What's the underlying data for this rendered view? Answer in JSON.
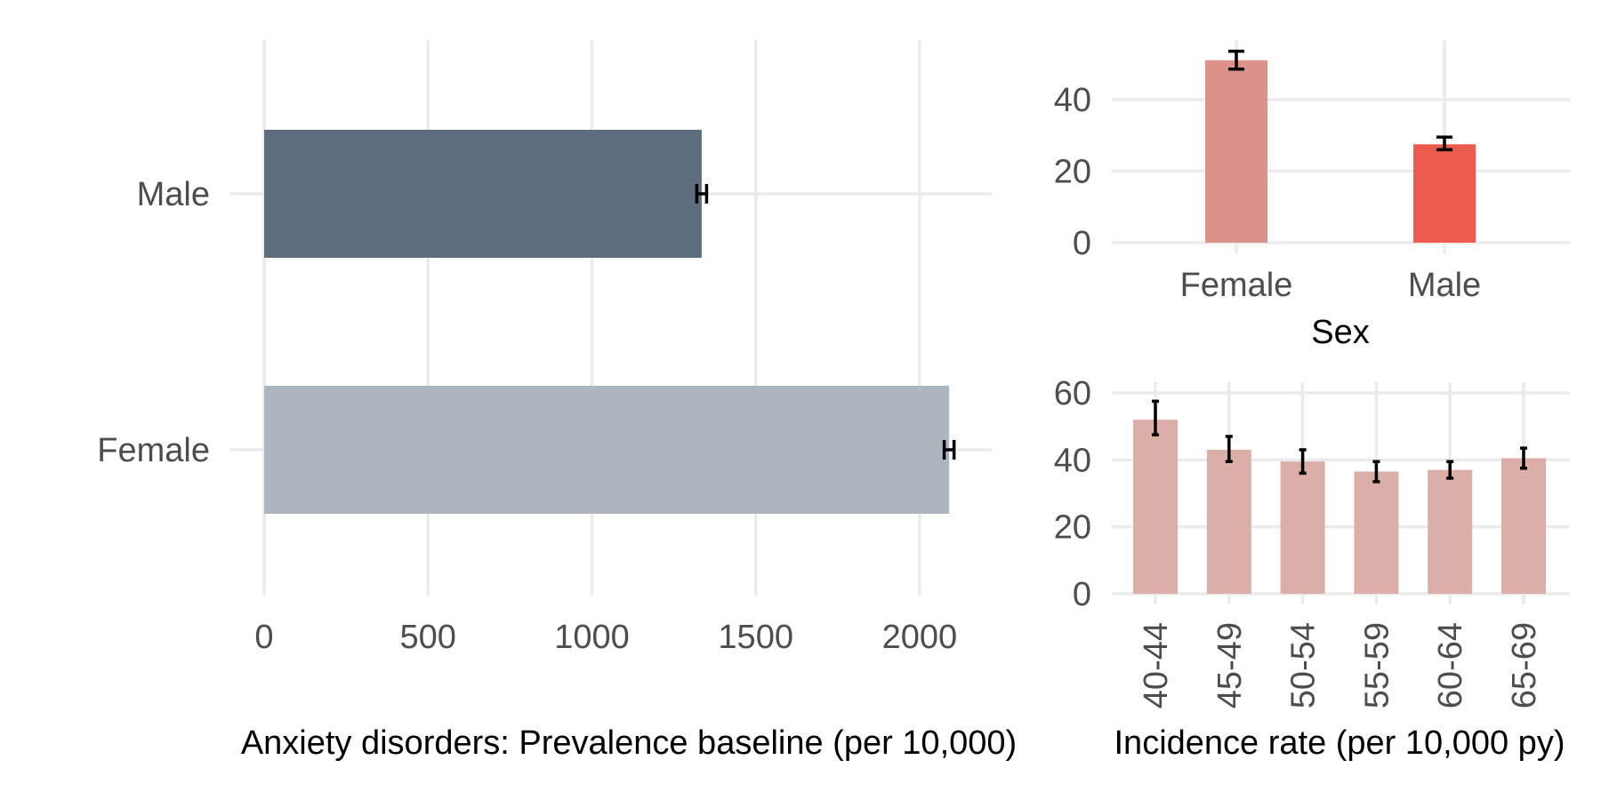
{
  "chart_data": [
    {
      "type": "bar",
      "orientation": "horizontal",
      "categories": [
        "Female",
        "Male"
      ],
      "values": [
        2090,
        1335
      ],
      "error_low": [
        2075,
        1320
      ],
      "error_high": [
        2105,
        1350
      ],
      "colors": [
        "#adb5bf",
        "#5d6d7e"
      ],
      "xlabel": "Anxiety disorders: Prevalence baseline (per 10,000)",
      "xticks": [
        0,
        500,
        1000,
        1500,
        2000
      ],
      "xlim": [
        0,
        2220
      ],
      "grid": true
    },
    {
      "type": "bar",
      "categories": [
        "Female",
        "Male"
      ],
      "values": [
        51,
        27.5
      ],
      "error_low": [
        48.5,
        26
      ],
      "error_high": [
        53.5,
        29.5
      ],
      "colors": [
        "#dc9189",
        "#ec5b4b"
      ],
      "xlabel": "Sex",
      "yticks": [
        0,
        20,
        40
      ],
      "ylim": [
        0,
        57
      ],
      "grid": true
    },
    {
      "type": "bar",
      "categories": [
        "40-44",
        "45-49",
        "50-54",
        "55-59",
        "60-64",
        "65-69"
      ],
      "values": [
        52,
        43,
        39.5,
        36.5,
        37,
        40.5
      ],
      "error_low": [
        47.5,
        39.5,
        36,
        33.5,
        34.5,
        37.5
      ],
      "error_high": [
        57.5,
        47,
        43,
        39.5,
        39.5,
        43.5
      ],
      "color": "#dcaea8",
      "xlabel": "Incidence rate (per 10,000 py)",
      "yticks": [
        0,
        20,
        40,
        60
      ],
      "ylim": [
        0,
        62
      ],
      "grid": true
    }
  ]
}
